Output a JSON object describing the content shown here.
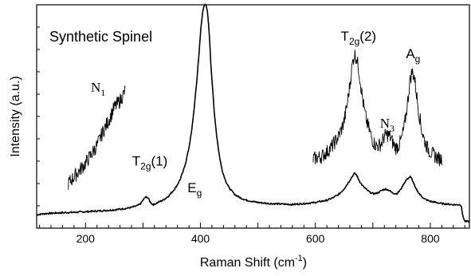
{
  "chart_data": {
    "type": "line",
    "title": "Synthetic Spinel",
    "xlabel": "Raman Shift (cm",
    "xlabel_sup": "-1",
    "xlabel_end": ")",
    "ylabel": "Intensity (a.u.)",
    "xlim": [
      115,
      868
    ],
    "ylim": [
      0,
      100
    ],
    "x_ticks": [
      200,
      400,
      600,
      800
    ],
    "y_ticks_labeled": false,
    "grid": false,
    "legend": "none",
    "series": [
      {
        "role": "full spectrum",
        "x": [
          115,
          130,
          150,
          170,
          190,
          210,
          230,
          250,
          270,
          280,
          290,
          296,
          300,
          303,
          306,
          309,
          312,
          315,
          318,
          322,
          326,
          330,
          335,
          340,
          345,
          350,
          355,
          360,
          365,
          370,
          375,
          380,
          385,
          390,
          394,
          398,
          401,
          404,
          406,
          408,
          410,
          412,
          414,
          416,
          418,
          421,
          424,
          428,
          432,
          436,
          440,
          445,
          450,
          460,
          470,
          480,
          500,
          520,
          540,
          560,
          580,
          600,
          620,
          630,
          640,
          648,
          655,
          660,
          665,
          668,
          671,
          674,
          678,
          682,
          686,
          690,
          695,
          700,
          705,
          710,
          716,
          722,
          728,
          733,
          738,
          742,
          746,
          750,
          754,
          758,
          762,
          765,
          768,
          771,
          774,
          778,
          782,
          786,
          790,
          795,
          800,
          810,
          820,
          830,
          840,
          848,
          852,
          854,
          856,
          860,
          868
        ],
        "y": [
          6,
          6.5,
          6.8,
          7,
          7.2,
          7.5,
          7.8,
          8.2,
          8.8,
          9.3,
          10,
          11,
          12.5,
          13.5,
          14,
          13.5,
          12,
          11,
          10.5,
          11,
          11.5,
          12,
          12.5,
          13.5,
          14.5,
          16,
          17.5,
          19.5,
          22,
          25.5,
          30,
          36,
          44,
          56,
          67,
          80,
          90,
          97,
          99.5,
          100,
          99.5,
          97,
          92,
          84,
          74,
          63,
          52,
          42,
          34,
          28,
          24,
          20.5,
          18,
          15,
          13.5,
          12.5,
          11.5,
          11,
          10.8,
          10.6,
          11,
          11.5,
          12.5,
          13.5,
          15,
          17,
          19.5,
          21.5,
          23.5,
          24.5,
          24,
          22.5,
          20.5,
          19,
          18,
          17,
          16,
          15.5,
          15.5,
          16,
          17,
          17.5,
          17,
          16,
          15.5,
          15.5,
          16.5,
          18,
          20,
          21.5,
          22.5,
          23,
          22,
          20,
          18,
          16.5,
          15,
          14,
          13,
          12.5,
          12,
          11.5,
          11,
          10.8,
          10.5,
          10.5,
          10.5,
          10,
          6,
          3,
          3
        ]
      },
      {
        "role": "N1 magnified segment",
        "x": [
          170,
          180,
          190,
          200,
          210,
          220,
          230,
          240,
          250,
          260,
          270
        ],
        "y": [
          20,
          23,
          26,
          29,
          33,
          37,
          43,
          48,
          54,
          57,
          62
        ]
      },
      {
        "role": "T2g(2) / N3 / Ag magnified segment",
        "x": [
          596,
          610,
          620,
          630,
          640,
          645,
          650,
          655,
          660,
          664,
          668,
          672,
          676,
          680,
          685,
          690,
          695,
          700,
          705,
          710,
          715,
          720,
          725,
          730,
          735,
          740,
          745,
          750,
          755,
          760,
          764,
          768,
          772,
          776,
          780,
          785,
          790,
          795,
          800,
          805,
          810,
          815,
          820
        ],
        "y": [
          31,
          32,
          34,
          37,
          41,
          44,
          48,
          55,
          64,
          73,
          78,
          76,
          70,
          62,
          53,
          47,
          43,
          39,
          37,
          37,
          38,
          41,
          42,
          41,
          38,
          36,
          37,
          40,
          46,
          55,
          65,
          70,
          68,
          60,
          52,
          44,
          39,
          36,
          34,
          33,
          32,
          31,
          31
        ]
      }
    ],
    "annotations": [
      {
        "base": "N",
        "sub": "1",
        "tail": "",
        "x": 222,
        "y": 61
      },
      {
        "base": "T",
        "sub": "2g",
        "tail": "(1)",
        "x": 312,
        "y": 28
      },
      {
        "base": "E",
        "sub": "g",
        "tail": "",
        "x": 390,
        "y": 16
      },
      {
        "base": "T",
        "sub": "2g",
        "tail": "(2)",
        "x": 675,
        "y": 84
      },
      {
        "base": "N",
        "sub": "3",
        "tail": "",
        "x": 725,
        "y": 45
      },
      {
        "base": "A",
        "sub": "g",
        "tail": "",
        "x": 770,
        "y": 76
      }
    ]
  }
}
